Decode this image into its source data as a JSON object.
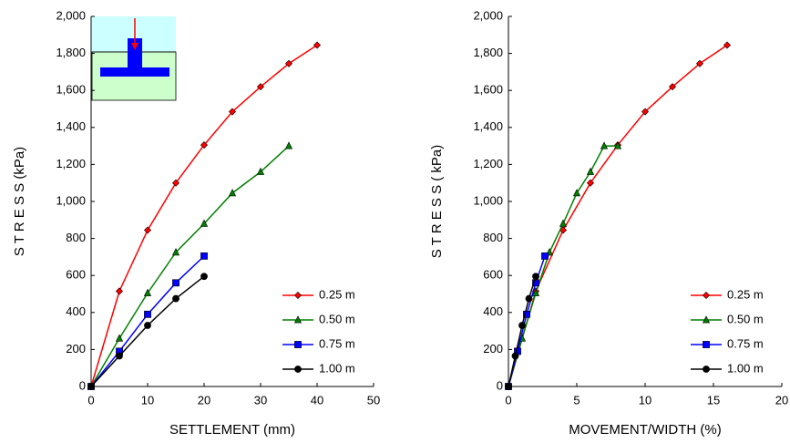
{
  "chart_data": [
    {
      "type": "line",
      "xlabel": "SETTLEMENT (mm)",
      "ylabel": "S T R E S S  (kPa)",
      "xlim": [
        0,
        50
      ],
      "xticks": [
        0,
        10,
        20,
        30,
        40,
        50
      ],
      "ylim": [
        0,
        2000
      ],
      "yticks": [
        0,
        200,
        400,
        600,
        800,
        {
          "value": 1000,
          "label": "1,000"
        },
        {
          "value": 1200,
          "label": "1,200"
        },
        {
          "value": 1400,
          "label": "1,400"
        },
        {
          "value": 1600,
          "label": "1,600"
        },
        {
          "value": 1800,
          "label": "1,800"
        },
        {
          "value": 2000,
          "label": "2,000"
        }
      ],
      "legend": "lower right",
      "series": [
        {
          "name": "0.25 m",
          "color": "#ff0000",
          "marker": "diamond",
          "x": [
            0,
            5,
            10,
            15,
            20,
            25,
            30,
            35,
            40
          ],
          "values": [
            0,
            515,
            845,
            1100,
            1305,
            1485,
            1620,
            1745,
            1845
          ]
        },
        {
          "name": "0.50 m",
          "color": "#008000",
          "marker": "triangle",
          "x": [
            0,
            5,
            10,
            15,
            20,
            25,
            30,
            35
          ],
          "values": [
            0,
            260,
            505,
            725,
            880,
            1045,
            1160,
            1300
          ]
        },
        {
          "name": "0.75 m",
          "color": "#0000ff",
          "marker": "square",
          "x": [
            0,
            5,
            10,
            15,
            20
          ],
          "values": [
            0,
            190,
            390,
            560,
            705
          ]
        },
        {
          "name": "1.00 m",
          "color": "#000000",
          "marker": "circle",
          "x": [
            0,
            5,
            10,
            15,
            20
          ],
          "values": [
            0,
            165,
            330,
            475,
            595
          ]
        }
      ]
    },
    {
      "type": "line",
      "xlabel": "MOVEMENT/WIDTH (%)",
      "ylabel": "S T R E S S  ( kPa)",
      "xlim": [
        0,
        20
      ],
      "xticks": [
        0,
        5,
        10,
        15,
        20
      ],
      "ylim": [
        0,
        2000
      ],
      "yticks": [
        0,
        200,
        400,
        600,
        800,
        {
          "value": 1000,
          "label": "1,000"
        },
        {
          "value": 1200,
          "label": "1,200"
        },
        {
          "value": 1400,
          "label": "1,400"
        },
        {
          "value": 1600,
          "label": "1,600"
        },
        {
          "value": 1800,
          "label": "1,800"
        },
        {
          "value": 2000,
          "label": "2,000"
        }
      ],
      "legend": "lower right",
      "series": [
        {
          "name": "0.25 m",
          "color": "#ff0000",
          "marker": "diamond",
          "x": [
            0,
            2,
            4,
            6,
            8,
            10,
            12,
            14,
            16
          ],
          "values": [
            0,
            515,
            845,
            1100,
            1305,
            1485,
            1620,
            1745,
            1845
          ]
        },
        {
          "name": "0.50 m",
          "color": "#008000",
          "marker": "triangle",
          "x": [
            0,
            1,
            2,
            3,
            4,
            5,
            6,
            7,
            8
          ],
          "values": [
            0,
            260,
            505,
            725,
            880,
            1045,
            1160,
            1300,
            1300
          ]
        },
        {
          "name": "0.75 m",
          "color": "#0000ff",
          "marker": "square",
          "x": [
            0,
            0.667,
            1.333,
            2,
            2.667
          ],
          "values": [
            0,
            190,
            390,
            560,
            705
          ]
        },
        {
          "name": "1.00 m",
          "color": "#000000",
          "marker": "circle",
          "x": [
            0,
            0.5,
            1,
            1.5,
            2
          ],
          "values": [
            0,
            165,
            330,
            475,
            595
          ]
        }
      ]
    }
  ]
}
